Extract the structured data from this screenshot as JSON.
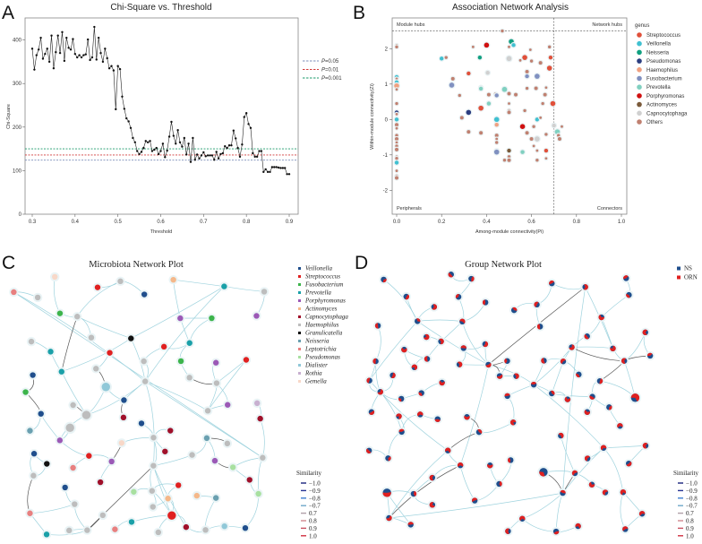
{
  "chart_data": [
    {
      "panel": "A",
      "type": "line",
      "title": "Chi-Square vs. Threshold",
      "xlabel": "Threshold",
      "ylabel": "Chi-Square",
      "xlim": [
        0.3,
        0.9
      ],
      "ylim": [
        0,
        440
      ],
      "xticks": [
        "0.3",
        "0.4",
        "0.5",
        "0.6",
        "0.7",
        "0.8",
        "0.9"
      ],
      "yticks": [
        "0",
        "100",
        "200",
        "300",
        "400"
      ],
      "x_start": 0.3,
      "x_step": 0.005,
      "values": [
        380,
        332,
        365,
        378,
        405,
        357,
        368,
        380,
        350,
        410,
        335,
        372,
        410,
        370,
        418,
        352,
        405,
        382,
        378,
        402,
        368,
        360,
        365,
        360,
        365,
        367,
        401,
        354,
        360,
        430,
        355,
        405,
        370,
        350,
        380,
        358,
        335,
        340,
        330,
        241,
        340,
        333,
        270,
        242,
        220,
        213,
        198,
        175,
        165,
        145,
        138,
        143,
        152,
        168,
        165,
        168,
        145,
        148,
        152,
        138,
        145,
        162,
        131,
        146,
        178,
        212,
        180,
        162,
        193,
        165,
        155,
        175,
        137,
        162,
        120,
        175,
        125,
        137,
        128,
        135,
        142,
        133,
        135,
        135,
        135,
        125,
        143,
        128,
        138,
        140,
        156,
        152,
        158,
        158,
        192,
        174,
        152,
        132,
        160,
        223,
        232,
        207,
        198,
        140,
        132,
        132,
        145,
        145,
        97,
        103,
        97,
        97,
        108,
        108,
        108,
        107,
        106,
        106,
        106,
        92,
        92
      ],
      "reference_lines": [
        {
          "label_p": "P",
          "label_rest": "=0.05",
          "value": 124,
          "color": "#7b8db8"
        },
        {
          "label_p": "P",
          "label_rest": "=0.01",
          "value": 136,
          "color": "#d23a3a"
        },
        {
          "label_p": "P",
          "label_rest": "=0.001",
          "value": 150,
          "color": "#1a9a6a"
        }
      ],
      "legend_position": "right"
    },
    {
      "panel": "B",
      "type": "scatter",
      "title": "Association Network Analysis",
      "xlabel": "Among-module connectivity(Pi)",
      "ylabel": "Within-module connectivity(Zi)",
      "xlim": [
        0,
        1.0
      ],
      "ylim": [
        -2.6,
        2.8
      ],
      "xticks": [
        "0.0",
        "0.2",
        "0.4",
        "0.6",
        "0.8",
        "1.0"
      ],
      "yticks": [
        "-2",
        "-1",
        "0",
        "1",
        "2"
      ],
      "threshold_pi": 0.7,
      "threshold_zi": 2.5,
      "quadrants": {
        "top_left": "Module hubs",
        "top_right": "Network hubs",
        "bottom_left": "Peripherals",
        "bottom_right": "Connectors"
      },
      "legend_title": "genus",
      "legend_position": "right",
      "genera": [
        {
          "name": "Streptococcus",
          "color": "#e0503a"
        },
        {
          "name": "Veillonella",
          "color": "#40c0d0"
        },
        {
          "name": "Neisseria",
          "color": "#10a080"
        },
        {
          "name": "Pseudomonas",
          "color": "#2c3e80"
        },
        {
          "name": "Haemophilus",
          "color": "#f0a080"
        },
        {
          "name": "Fusobacterium",
          "color": "#8090c0"
        },
        {
          "name": "Prevotella",
          "color": "#80d0c0"
        },
        {
          "name": "Porphyromonas",
          "color": "#d01010"
        },
        {
          "name": "Actinomyces",
          "color": "#7a5a3a"
        },
        {
          "name": "Capnocytophaga",
          "color": "#d0d0d0"
        },
        {
          "name": "Others",
          "color": "#c08070"
        }
      ],
      "points": [
        [
          0,
          2.1,
          10
        ],
        [
          0,
          2.05,
          10
        ],
        [
          0,
          1.2,
          1
        ],
        [
          0,
          1.15,
          10
        ],
        [
          0,
          1.05,
          1
        ],
        [
          0,
          0.95,
          4
        ],
        [
          0,
          0.85,
          10
        ],
        [
          0,
          0.45,
          10
        ],
        [
          0,
          0.2,
          3
        ],
        [
          0,
          0.15,
          10
        ],
        [
          0,
          0,
          1
        ],
        [
          0,
          -0.15,
          10
        ],
        [
          0,
          -0.25,
          10
        ],
        [
          0,
          -0.45,
          10
        ],
        [
          0,
          -0.55,
          10
        ],
        [
          0,
          -0.65,
          10
        ],
        [
          0,
          -0.75,
          10
        ],
        [
          0,
          -0.85,
          10
        ],
        [
          0,
          -1.05,
          10
        ],
        [
          0,
          -1.1,
          10
        ],
        [
          0,
          -1.22,
          1
        ],
        [
          0,
          -1.45,
          10
        ],
        [
          0,
          -1.6,
          10
        ],
        [
          0,
          -1.65,
          10
        ],
        [
          0.2,
          1.72,
          1
        ],
        [
          0.22,
          1.75,
          10
        ],
        [
          0.25,
          1.15,
          10
        ],
        [
          0.245,
          0.97,
          5
        ],
        [
          0.28,
          0.68,
          10
        ],
        [
          0.29,
          0.05,
          10
        ],
        [
          0.32,
          1.3,
          0
        ],
        [
          0.32,
          0.2,
          3
        ],
        [
          0.32,
          -0.35,
          10
        ],
        [
          0.34,
          2.05,
          10
        ],
        [
          0.37,
          1.75,
          2
        ],
        [
          0.375,
          0.9,
          10
        ],
        [
          0.375,
          0.87,
          6
        ],
        [
          0.375,
          0.32,
          0
        ],
        [
          0.375,
          -0.38,
          10
        ],
        [
          0.4,
          2.1,
          7
        ],
        [
          0.405,
          1.32,
          9
        ],
        [
          0.41,
          0.7,
          10
        ],
        [
          0.41,
          0.45,
          6
        ],
        [
          0.44,
          0.72,
          10
        ],
        [
          0.445,
          0.68,
          5
        ],
        [
          0.445,
          0,
          1
        ],
        [
          0.445,
          -0.15,
          4
        ],
        [
          0.445,
          -0.45,
          10
        ],
        [
          0.445,
          -0.55,
          10
        ],
        [
          0.445,
          -0.65,
          10
        ],
        [
          0.445,
          -0.88,
          10
        ],
        [
          0.445,
          -0.92,
          5
        ],
        [
          0.48,
          -1.15,
          10
        ],
        [
          0.48,
          0.85,
          6
        ],
        [
          0.5,
          2.05,
          10
        ],
        [
          0.5,
          1.72,
          9
        ],
        [
          0.5,
          0.73,
          10
        ],
        [
          0.5,
          0.45,
          10
        ],
        [
          0.5,
          0.25,
          10
        ],
        [
          0.5,
          0.2,
          10
        ],
        [
          0.5,
          -0.88,
          8
        ],
        [
          0.5,
          -1.05,
          10
        ],
        [
          0.5,
          -1.15,
          10
        ],
        [
          0.51,
          2.2,
          2
        ],
        [
          0.52,
          2.1,
          1
        ],
        [
          0.53,
          0.7,
          10
        ],
        [
          0.55,
          1.67,
          10
        ],
        [
          0.56,
          -0.2,
          7
        ],
        [
          0.56,
          -0.92,
          6
        ],
        [
          0.57,
          1.75,
          0
        ],
        [
          0.57,
          0.25,
          10
        ],
        [
          0.58,
          1.35,
          10
        ],
        [
          0.58,
          1.22,
          5
        ],
        [
          0.58,
          0.88,
          10
        ],
        [
          0.58,
          -0.38,
          10
        ],
        [
          0.595,
          1.97,
          10
        ],
        [
          0.6,
          1.65,
          10
        ],
        [
          0.6,
          -0.55,
          10
        ],
        [
          0.61,
          -0.75,
          10
        ],
        [
          0.61,
          -0.2,
          10
        ],
        [
          0.62,
          0.88,
          10
        ],
        [
          0.625,
          1.22,
          5
        ],
        [
          0.625,
          0,
          1
        ],
        [
          0.625,
          -0.55,
          9
        ],
        [
          0.625,
          -0.88,
          10
        ],
        [
          0.625,
          -1.15,
          10
        ],
        [
          0.64,
          1.6,
          10
        ],
        [
          0.64,
          0.05,
          10
        ],
        [
          0.65,
          0.45,
          10
        ],
        [
          0.66,
          0.7,
          10
        ],
        [
          0.665,
          0.9,
          10
        ],
        [
          0.665,
          -0.42,
          10
        ],
        [
          0.665,
          -0.88,
          0
        ],
        [
          0.665,
          -1.1,
          10
        ],
        [
          0.68,
          2.05,
          10
        ],
        [
          0.68,
          1.45,
          0
        ],
        [
          0.685,
          1.75,
          0
        ],
        [
          0.695,
          0.45,
          0
        ],
        [
          0.7,
          -0.17,
          9
        ],
        [
          0.715,
          -0.35,
          6
        ],
        [
          0.72,
          -0.45,
          10
        ],
        [
          0.725,
          -0.55,
          10
        ],
        [
          0.735,
          -0.2,
          10
        ],
        [
          0.47,
          2.5,
          10
        ]
      ]
    }
  ],
  "panel_c": {
    "letter": "C",
    "title": "Microbiota Network Plot",
    "genera": [
      {
        "name": "Veillonella",
        "color": "#1f4e8c"
      },
      {
        "name": "Streptococcus",
        "color": "#e02020"
      },
      {
        "name": "Fusobacterium",
        "color": "#3cb44b"
      },
      {
        "name": "Prevotella",
        "color": "#1aa0a8"
      },
      {
        "name": "Porphyromonas",
        "color": "#9b59b6"
      },
      {
        "name": "Actinomyces",
        "color": "#f5b88a"
      },
      {
        "name": "Capnocytophaga",
        "color": "#a0102a"
      },
      {
        "name": "Haemophilus",
        "color": "#bdbdbd"
      },
      {
        "name": "Granulicatella",
        "color": "#111111"
      },
      {
        "name": "Neisseria",
        "color": "#6aa0b0"
      },
      {
        "name": "Leptotrichia",
        "color": "#e88080"
      },
      {
        "name": "Pseudomonas",
        "color": "#a8e0a0"
      },
      {
        "name": "Dialister",
        "color": "#90c8d8"
      },
      {
        "name": "Rothia",
        "color": "#c8b0d0"
      },
      {
        "name": "Gemella",
        "color": "#f8d8c8"
      }
    ]
  },
  "panel_d": {
    "letter": "D",
    "title": "Group Network Plot",
    "groups": [
      {
        "name": "NS",
        "color": "#1f4e8c"
      },
      {
        "name": "ORN",
        "color": "#e02020"
      }
    ]
  },
  "similarity_legend": {
    "title": "Similarity",
    "items": [
      {
        "label": "−1.0",
        "color": "#1a237e"
      },
      {
        "label": "−0.9",
        "color": "#283593"
      },
      {
        "label": "−0.8",
        "color": "#3f7fd0"
      },
      {
        "label": "−0.7",
        "color": "#6fa8c8"
      },
      {
        "label": "0.7",
        "color": "#b0a0a8"
      },
      {
        "label": "0.8",
        "color": "#d08890"
      },
      {
        "label": "0.9",
        "color": "#c85060"
      },
      {
        "label": "1.0",
        "color": "#d03040"
      }
    ]
  },
  "letters": {
    "a": "A",
    "b": "B"
  }
}
